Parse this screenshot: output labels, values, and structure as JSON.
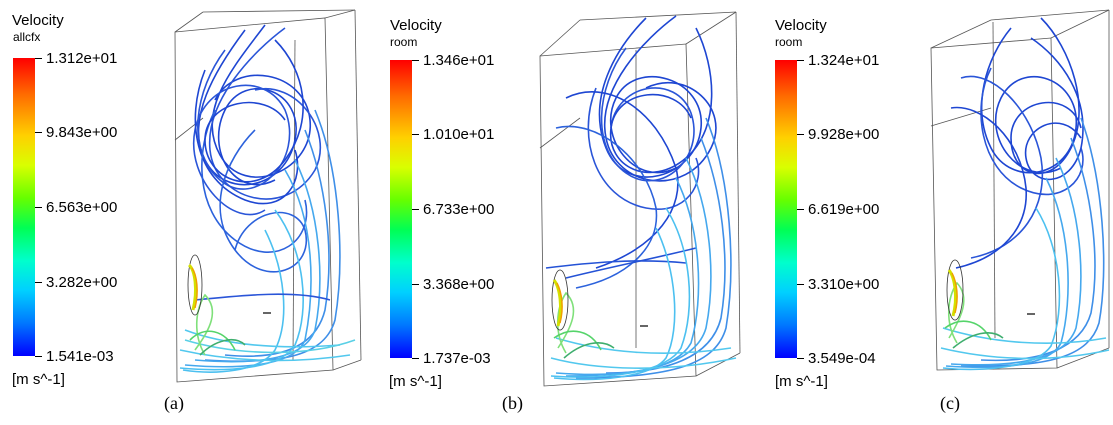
{
  "panels": [
    {
      "legend_title": "Velocity",
      "legend_subtitle": "allcfx",
      "tick_labels": [
        "1.312e+01",
        "9.843e+00",
        "6.563e+00",
        "3.282e+00",
        "1.541e-03"
      ],
      "units": "[m s^-1]",
      "caption": "(a)"
    },
    {
      "legend_title": "Velocity",
      "legend_subtitle": "room",
      "tick_labels": [
        "1.346e+01",
        "1.010e+01",
        "6.733e+00",
        "3.368e+00",
        "1.737e-03"
      ],
      "units": "[m s^-1]",
      "caption": "(b)"
    },
    {
      "legend_title": "Velocity",
      "legend_subtitle": "room",
      "tick_labels": [
        "1.324e+01",
        "9.928e+00",
        "6.619e+00",
        "3.310e+00",
        "3.549e-04"
      ],
      "units": "[m s^-1]",
      "caption": "(c)"
    }
  ],
  "colors": {
    "max": "#ff0000",
    "mid": "#66ff00",
    "min": "#0000ff",
    "streamline_dark": "#1e46d2",
    "streamline_light": "#33b8ee",
    "box_edge": "#555555"
  }
}
